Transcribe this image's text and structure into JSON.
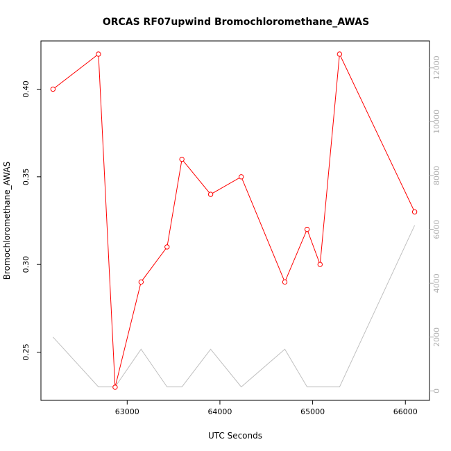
{
  "chart_data": {
    "type": "line",
    "title": "ORCAS RF07upwind Bromochloromethane_AWAS",
    "xlabel": "UTC Seconds",
    "ylabel": "Bromochloromethane_AWAS",
    "xlim": [
      62070,
      66260
    ],
    "ylim": [
      0.2225,
      0.4275
    ],
    "y2lim": [
      -350,
      13000
    ],
    "x_ticks": [
      63000,
      64000,
      65000,
      66000
    ],
    "y_ticks": [
      0.25,
      0.3,
      0.35,
      0.4
    ],
    "y2_ticks": [
      0,
      2000,
      4000,
      6000,
      8000,
      10000,
      12000
    ],
    "colors": {
      "primary": "#ff0000",
      "secondary": "#c0c0c0"
    },
    "grid": false,
    "series": [
      {
        "axis": "left",
        "style": "line+points",
        "x": [
          62200,
          62690,
          62870,
          63150,
          63430,
          63590,
          63900,
          64230,
          64700,
          64940,
          65080,
          65290,
          66100
        ],
        "y": [
          0.4,
          0.42,
          0.23,
          0.29,
          0.31,
          0.36,
          0.34,
          0.35,
          0.29,
          0.32,
          0.3,
          0.42,
          0.33
        ]
      },
      {
        "axis": "right",
        "style": "line",
        "x": [
          62200,
          62690,
          62870,
          63150,
          63430,
          63590,
          63900,
          64230,
          64700,
          64940,
          65080,
          65290,
          66100
        ],
        "y": [
          2000,
          150,
          150,
          1550,
          150,
          150,
          1550,
          150,
          1550,
          150,
          150,
          150,
          6150
        ]
      }
    ]
  }
}
